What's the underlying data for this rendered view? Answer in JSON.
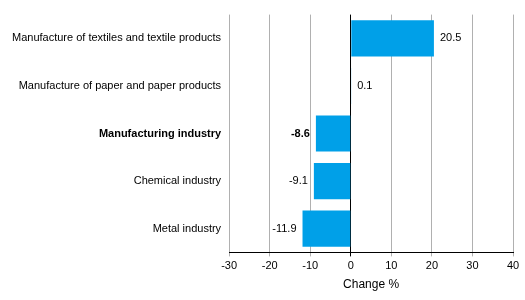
{
  "chart_data": {
    "type": "bar",
    "orientation": "horizontal",
    "categories": [
      "Manufacture of textiles and textile products",
      "Manufacture of paper and paper products",
      "Manufacturing industry",
      "Chemical industry",
      "Metal industry"
    ],
    "values": [
      20.5,
      0.1,
      -8.6,
      -9.1,
      -11.9
    ],
    "color": "#00a0e8",
    "x_label": "Change %",
    "xlim": [
      -30,
      40
    ],
    "xticks": [
      -30,
      -20,
      -10,
      0,
      10,
      20,
      30,
      40
    ],
    "grid": true,
    "data_labels": true
  }
}
